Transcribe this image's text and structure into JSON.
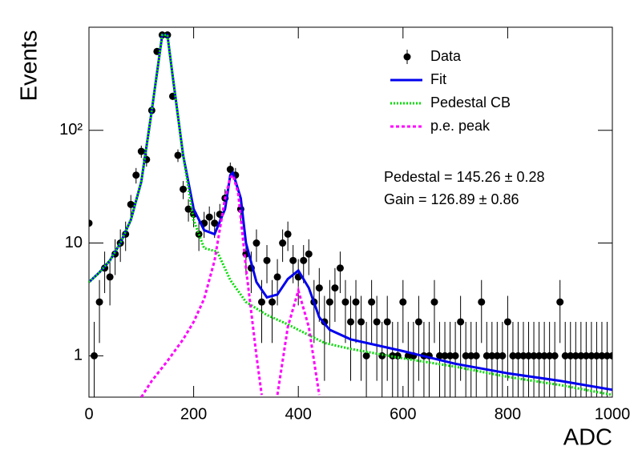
{
  "chart_data": {
    "type": "scatter",
    "xlabel": "ADC",
    "ylabel": "Events",
    "xlim": [
      0,
      1000
    ],
    "ylim": [
      0.43,
      820
    ],
    "log_y": true,
    "xticks": [
      0,
      200,
      400,
      600,
      800,
      1000
    ],
    "yticks": [
      1,
      10,
      {
        "value": 100,
        "label": "10²"
      }
    ],
    "legend": "top right",
    "annotations": [
      "Pedestal = 145.26 ± 0.28",
      "Gain = 126.89 ± 0.86"
    ],
    "series": [
      {
        "name": "Data",
        "kind": "errorbar",
        "color": "#000000",
        "x": [
          0,
          10,
          20,
          30,
          40,
          50,
          60,
          70,
          80,
          90,
          100,
          110,
          120,
          130,
          140,
          150,
          160,
          170,
          180,
          190,
          200,
          210,
          220,
          230,
          240,
          250,
          260,
          270,
          280,
          290,
          300,
          310,
          320,
          330,
          340,
          350,
          360,
          370,
          380,
          390,
          400,
          410,
          420,
          430,
          440,
          450,
          460,
          470,
          480,
          490,
          500,
          510,
          520,
          530,
          540,
          550,
          560,
          570,
          580,
          590,
          600,
          610,
          620,
          630,
          640,
          650,
          660,
          670,
          680,
          690,
          700,
          710,
          720,
          730,
          740,
          750,
          760,
          770,
          780,
          790,
          800,
          810,
          820,
          830,
          840,
          850,
          860,
          870,
          880,
          890,
          900,
          910,
          920,
          930,
          940,
          950,
          960,
          970,
          980,
          990,
          1000
        ],
        "values": [
          15,
          1,
          3,
          6,
          5,
          8,
          10,
          12,
          22,
          40,
          65,
          55,
          150,
          500,
          700,
          700,
          200,
          60,
          30,
          20,
          18,
          12,
          15,
          17,
          15,
          18,
          25,
          45,
          40,
          20,
          8,
          6,
          10,
          3,
          7,
          3,
          5,
          10,
          12,
          7,
          5,
          7,
          8,
          3,
          4,
          2,
          3,
          4,
          6,
          3,
          2,
          3,
          2,
          1,
          3,
          2,
          1,
          2,
          1,
          1,
          3,
          1,
          1,
          2,
          1,
          1,
          3,
          1,
          1,
          1,
          1,
          2,
          1,
          1,
          1,
          3,
          1,
          1,
          1,
          1,
          2,
          1,
          1,
          1,
          1,
          1,
          1,
          1,
          1,
          1,
          3,
          1,
          1,
          1,
          1,
          1,
          1,
          1,
          1,
          1,
          1
        ],
        "errors": [
          3.9,
          1,
          1.7,
          2.4,
          2.2,
          2.8,
          3.2,
          3.5,
          4.7,
          6.3,
          8.1,
          7.4,
          12.2,
          22.4,
          26.5,
          26.5,
          14.1,
          7.7,
          5.5,
          4.5,
          4.2,
          3.5,
          3.9,
          4.1,
          3.9,
          4.2,
          5,
          6.7,
          6.3,
          4.5,
          2.8,
          2.4,
          3.2,
          1.7,
          2.6,
          1.7,
          2.2,
          3.2,
          3.5,
          2.6,
          2.2,
          2.6,
          2.8,
          1.7,
          2,
          1.4,
          1.7,
          2,
          2.4,
          1.7,
          1.4,
          1.7,
          1.4,
          1,
          1.7,
          1.4,
          1,
          1.4,
          1,
          1,
          1.7,
          1,
          1,
          1.4,
          1,
          1,
          1.7,
          1,
          1,
          1,
          1,
          1.4,
          1,
          1,
          1,
          1.7,
          1,
          1,
          1,
          1,
          1.4,
          1,
          1,
          1,
          1,
          1,
          1,
          1,
          1,
          1,
          1.7,
          1,
          1,
          1,
          1,
          1,
          1,
          1,
          1,
          1,
          1
        ]
      },
      {
        "name": "Fit",
        "kind": "line",
        "color": "#0000ee",
        "x": [
          0,
          20,
          40,
          60,
          80,
          100,
          120,
          140,
          150,
          160,
          180,
          200,
          220,
          240,
          260,
          270,
          275,
          290,
          300,
          320,
          340,
          360,
          380,
          400,
          420,
          440,
          460,
          500,
          600,
          700,
          800,
          900,
          1000
        ],
        "values": [
          4.5,
          5.5,
          7,
          10,
          16,
          35,
          150,
          700,
          700,
          300,
          60,
          20,
          13,
          12,
          20,
          40,
          42,
          25,
          10,
          4.5,
          3.3,
          3.5,
          4.8,
          5.7,
          4,
          2.2,
          1.7,
          1.4,
          1.1,
          0.85,
          0.7,
          0.6,
          0.5
        ]
      },
      {
        "name": "Pedestal CB",
        "kind": "line",
        "color": "#00dd00",
        "x": [
          0,
          20,
          40,
          60,
          80,
          100,
          120,
          140,
          150,
          160,
          180,
          200,
          220,
          245,
          270,
          300,
          340,
          380,
          400,
          450,
          500,
          600,
          700,
          800,
          900,
          1000
        ],
        "values": [
          4.5,
          5.5,
          7,
          10,
          16,
          35,
          150,
          700,
          700,
          300,
          60,
          16,
          9,
          8.4,
          4.7,
          3,
          2.3,
          1.9,
          1.7,
          1.3,
          1.15,
          0.95,
          0.8,
          0.65,
          0.55,
          0.45
        ]
      },
      {
        "name": "p.e. peak",
        "kind": "line",
        "color": "#ff00ff",
        "x": [
          100,
          120,
          150,
          180,
          200,
          220,
          240,
          260,
          270,
          275,
          285,
          300,
          320,
          330,
          345,
          360,
          380,
          400,
          420,
          440
        ],
        "values": [
          0.43,
          0.6,
          0.9,
          1.4,
          2,
          3.2,
          7,
          25,
          38,
          40,
          28,
          6,
          1,
          0.45,
          null,
          0.45,
          1.8,
          3.8,
          1.8,
          0.45
        ]
      }
    ]
  }
}
